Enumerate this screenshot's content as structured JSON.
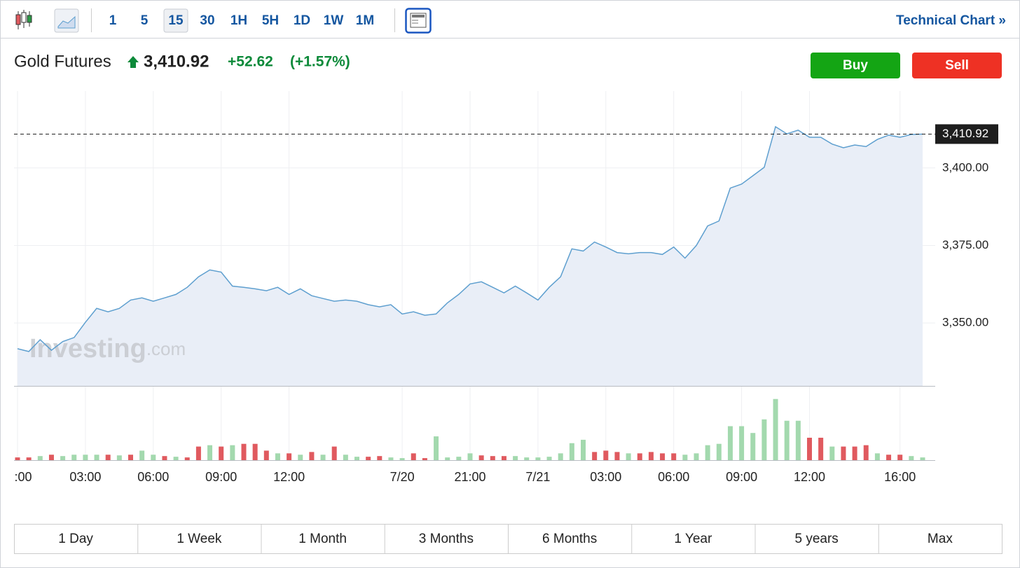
{
  "toolbar": {
    "intervals": [
      "1",
      "5",
      "15",
      "30",
      "1H",
      "5H",
      "1D",
      "1W",
      "1M"
    ],
    "active_interval_index": 2,
    "technical_chart": "Technical Chart »"
  },
  "header": {
    "instrument": "Gold Futures",
    "price": "3,410.92",
    "change": "+52.62",
    "change_percent": "(+1.57%)",
    "buy": "Buy",
    "sell": "Sell"
  },
  "range_buttons": [
    "1 Day",
    "1 Week",
    "1 Month",
    "3 Months",
    "6 Months",
    "1 Year",
    "5 years",
    "Max"
  ],
  "chart_data": [
    {
      "type": "area",
      "watermark": [
        "Investing",
        ".com"
      ],
      "categories": [
        ":00",
        null,
        null,
        null,
        null,
        null,
        "03:00",
        null,
        null,
        null,
        null,
        null,
        "06:00",
        null,
        null,
        null,
        null,
        null,
        "09:00",
        null,
        null,
        null,
        null,
        null,
        "12:00",
        null,
        null,
        null,
        null,
        null,
        null,
        null,
        null,
        null,
        "7/20",
        null,
        null,
        null,
        null,
        null,
        "21:00",
        null,
        null,
        null,
        null,
        null,
        "7/21",
        null,
        null,
        null,
        null,
        null,
        "03:00",
        null,
        null,
        null,
        null,
        null,
        "06:00",
        null,
        null,
        null,
        null,
        null,
        "09:00",
        null,
        null,
        null,
        null,
        null,
        "12:00",
        null,
        null,
        null,
        null,
        null,
        null,
        null,
        "16:00",
        null,
        null
      ],
      "values": [
        3341.7,
        3340.8,
        3344.6,
        3341.2,
        3344,
        3345.3,
        3350.2,
        3354.7,
        3353.6,
        3354.7,
        3357.4,
        3358.1,
        3357,
        3358.1,
        3359.2,
        3361.5,
        3364.9,
        3367.1,
        3366.4,
        3361.9,
        3361.5,
        3361,
        3360.4,
        3361.5,
        3359.2,
        3361,
        3358.8,
        3357.9,
        3357,
        3357.4,
        3357,
        3355.9,
        3355.2,
        3355.9,
        3352.9,
        3353.6,
        3352.5,
        3352.9,
        3356.5,
        3359.2,
        3362.6,
        3363.3,
        3361.5,
        3359.7,
        3361.9,
        3359.7,
        3357.4,
        3361.5,
        3364.9,
        3373.9,
        3373.2,
        3376.1,
        3374.5,
        3372.7,
        3372.3,
        3372.7,
        3372.7,
        3372.1,
        3374.5,
        3370.9,
        3375,
        3381.3,
        3382.9,
        3393.5,
        3394.8,
        3397.5,
        3400.2,
        3413.3,
        3411,
        3412.2,
        3409.9,
        3409.9,
        3407.7,
        3406.5,
        3407.4,
        3406.9,
        3409.2,
        3410.6,
        3409.9,
        3410.8,
        3410.9
      ],
      "color": "#5e9fcf",
      "fill": "#e9eef7",
      "ylim": [
        3329.7,
        3424.8
      ],
      "yticks": [
        {
          "value": 3350,
          "label": "3,350.00"
        },
        {
          "value": 3375,
          "label": "3,375.00"
        },
        {
          "value": 3400,
          "label": "3,400.00"
        }
      ],
      "reference_line": {
        "value": 3410.92,
        "label": "3,410.92"
      },
      "grid": true
    },
    {
      "type": "bar",
      "ylim": [
        0,
        100
      ],
      "values": [
        4,
        4,
        6,
        8,
        6,
        8,
        8,
        8,
        8,
        7,
        8,
        14,
        8,
        6,
        5,
        4,
        20,
        22,
        20,
        22,
        24,
        24,
        14,
        10,
        10,
        8,
        12,
        8,
        20,
        8,
        5,
        5,
        6,
        4,
        3,
        10,
        3,
        35,
        4,
        5,
        10,
        7,
        6,
        6,
        6,
        4,
        4,
        5,
        10,
        25,
        30,
        12,
        14,
        12,
        10,
        10,
        12,
        10,
        10,
        8,
        10,
        22,
        24,
        50,
        50,
        40,
        60,
        90,
        58,
        58,
        33,
        33,
        20,
        20,
        20,
        22,
        10,
        8,
        8,
        6,
        4
      ],
      "colors": [
        "#e05a5f",
        "#e05a5f",
        "#a3d9ae",
        "#e05a5f",
        "#a3d9ae",
        "#a3d9ae",
        "#a3d9ae",
        "#a3d9ae",
        "#e05a5f",
        "#a3d9ae",
        "#e05a5f",
        "#a3d9ae",
        "#a3d9ae",
        "#e05a5f",
        "#a3d9ae",
        "#e05a5f",
        "#e05a5f",
        "#a3d9ae",
        "#e05a5f",
        "#a3d9ae",
        "#e05a5f",
        "#e05a5f",
        "#e05a5f",
        "#a3d9ae",
        "#e05a5f",
        "#a3d9ae",
        "#e05a5f",
        "#a3d9ae",
        "#e05a5f",
        "#a3d9ae",
        "#a3d9ae",
        "#e05a5f",
        "#e05a5f",
        "#a3d9ae",
        "#a3d9ae",
        "#e05a5f",
        "#e05a5f",
        "#a3d9ae",
        "#a3d9ae",
        "#a3d9ae",
        "#a3d9ae",
        "#e05a5f",
        "#e05a5f",
        "#e05a5f",
        "#a3d9ae",
        "#a3d9ae",
        "#a3d9ae",
        "#a3d9ae",
        "#a3d9ae",
        "#a3d9ae",
        "#a3d9ae",
        "#e05a5f",
        "#e05a5f",
        "#e05a5f",
        "#a3d9ae",
        "#e05a5f",
        "#e05a5f",
        "#e05a5f",
        "#e05a5f",
        "#a3d9ae",
        "#a3d9ae",
        "#a3d9ae",
        "#a3d9ae",
        "#a3d9ae",
        "#a3d9ae",
        "#a3d9ae",
        "#a3d9ae",
        "#a3d9ae",
        "#a3d9ae",
        "#a3d9ae",
        "#e05a5f",
        "#e05a5f",
        "#a3d9ae",
        "#e05a5f",
        "#e05a5f",
        "#e05a5f",
        "#a3d9ae",
        "#e05a5f",
        "#e05a5f",
        "#a3d9ae",
        "#a3d9ae"
      ]
    }
  ]
}
